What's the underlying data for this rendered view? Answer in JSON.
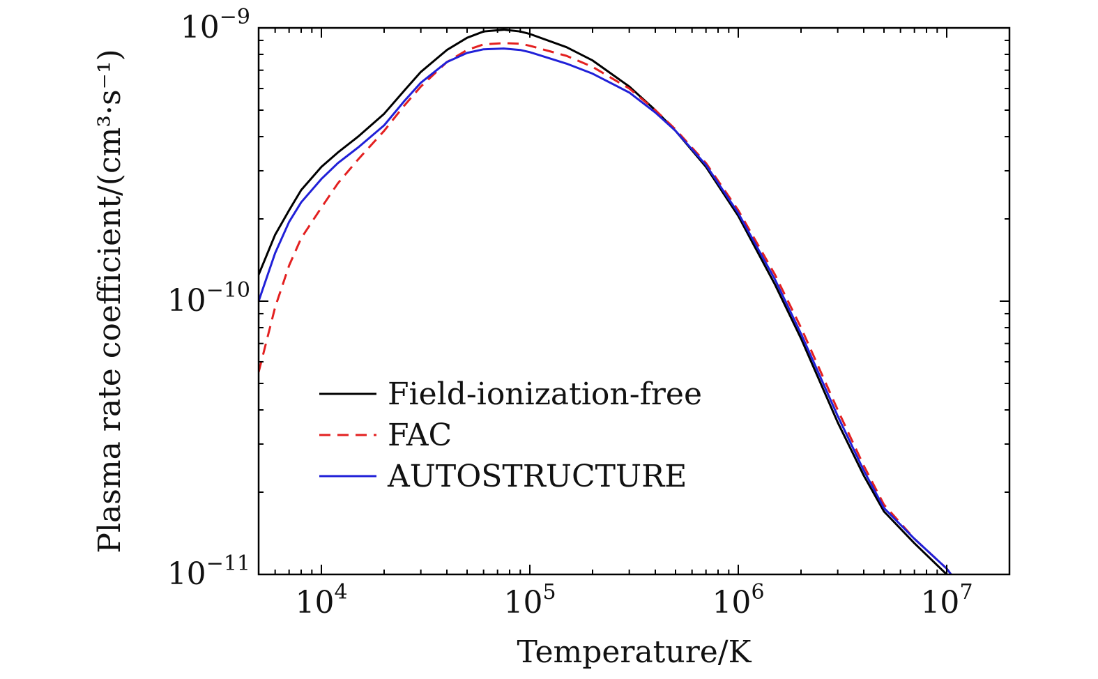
{
  "chart_data": {
    "type": "line",
    "title": "",
    "xlabel": "Temperature/K",
    "ylabel": "Plasma rate coefficient/(cm³·s⁻¹)",
    "x_scale": "log",
    "y_scale": "log",
    "xlim": [
      5000,
      20000000
    ],
    "ylim": [
      1e-11,
      1e-09
    ],
    "grid": false,
    "legend_position": "lower-left",
    "x_major_ticks": [
      {
        "value": 10000,
        "base": "10",
        "exp": "4"
      },
      {
        "value": 100000,
        "base": "10",
        "exp": "5"
      },
      {
        "value": 1000000,
        "base": "10",
        "exp": "6"
      },
      {
        "value": 10000000,
        "base": "10",
        "exp": "7"
      }
    ],
    "y_major_ticks": [
      {
        "value": 1e-11,
        "base": "10",
        "exp": "−11"
      },
      {
        "value": 1e-10,
        "base": "10",
        "exp": "−10"
      },
      {
        "value": 1e-09,
        "base": "10",
        "exp": "−9"
      }
    ],
    "series": [
      {
        "name": "Field-ionization-free",
        "color": "#000000",
        "dash": "solid",
        "x": [
          5000,
          6000,
          7000,
          8000,
          10000,
          12000,
          15000,
          20000,
          25000,
          30000,
          40000,
          50000,
          60000,
          75000,
          90000,
          100000,
          150000,
          200000,
          300000,
          400000,
          500000,
          700000,
          1000000,
          1500000,
          2000000,
          3000000,
          4000000,
          5000000,
          7000000,
          10000000
        ],
        "y": [
          1.25e-10,
          1.75e-10,
          2.15e-10,
          2.55e-10,
          3.1e-10,
          3.5e-10,
          4e-10,
          4.85e-10,
          5.9e-10,
          6.9e-10,
          8.3e-10,
          9.2e-10,
          9.7e-10,
          9.85e-10,
          9.7e-10,
          9.5e-10,
          8.5e-10,
          7.6e-10,
          6.1e-10,
          5e-10,
          4.2e-10,
          3.1e-10,
          2.05e-10,
          1.15e-10,
          7.3e-11,
          3.6e-11,
          2.3e-11,
          1.7e-11,
          1.3e-11,
          1e-11
        ]
      },
      {
        "name": "FAC",
        "color": "#e32020",
        "dash": "dashed",
        "x": [
          5000,
          6000,
          7000,
          8000,
          10000,
          12000,
          15000,
          20000,
          25000,
          30000,
          40000,
          50000,
          60000,
          75000,
          90000,
          100000,
          150000,
          200000,
          300000,
          400000,
          500000,
          700000,
          1000000,
          1500000,
          2000000,
          3000000,
          4000000,
          5000000,
          7000000,
          10000000,
          10500000
        ],
        "y": [
          5.5e-11,
          9.5e-11,
          1.35e-10,
          1.7e-10,
          2.2e-10,
          2.7e-10,
          3.3e-10,
          4.2e-10,
          5.2e-10,
          6.1e-10,
          7.5e-10,
          8.3e-10,
          8.7e-10,
          8.8e-10,
          8.75e-10,
          8.6e-10,
          7.9e-10,
          7.2e-10,
          6e-10,
          5e-10,
          4.25e-10,
          3.2e-10,
          2.15e-10,
          1.25e-10,
          8e-11,
          4e-11,
          2.5e-11,
          1.8e-11,
          1.35e-11,
          1.05e-11,
          1e-11
        ]
      },
      {
        "name": "AUTOSTRUCTURE",
        "color": "#2020d8",
        "dash": "solid",
        "x": [
          5000,
          6000,
          7000,
          8000,
          10000,
          12000,
          15000,
          20000,
          25000,
          30000,
          40000,
          50000,
          60000,
          75000,
          90000,
          100000,
          150000,
          200000,
          300000,
          400000,
          500000,
          700000,
          1000000,
          1500000,
          2000000,
          3000000,
          4000000,
          5000000,
          7000000,
          10000000,
          10500000
        ],
        "y": [
          1e-10,
          1.5e-10,
          1.95e-10,
          2.3e-10,
          2.8e-10,
          3.2e-10,
          3.65e-10,
          4.4e-10,
          5.4e-10,
          6.3e-10,
          7.5e-10,
          8.1e-10,
          8.35e-10,
          8.4e-10,
          8.3e-10,
          8.15e-10,
          7.4e-10,
          6.8e-10,
          5.8e-10,
          4.9e-10,
          4.2e-10,
          3.15e-10,
          2.1e-10,
          1.2e-10,
          7.6e-11,
          3.8e-11,
          2.4e-11,
          1.75e-11,
          1.35e-11,
          1.05e-11,
          1e-11
        ]
      }
    ]
  }
}
